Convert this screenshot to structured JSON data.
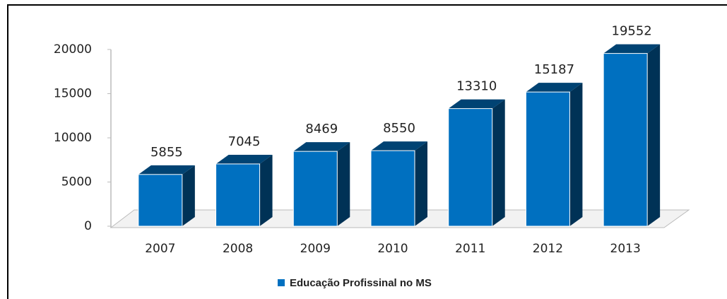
{
  "chart_data": {
    "type": "bar3d",
    "categories": [
      "2007",
      "2008",
      "2009",
      "2010",
      "2011",
      "2012",
      "2013"
    ],
    "series": [
      {
        "name": "Educação Profissinal no MS",
        "color": "#0070c0",
        "values": [
          5855,
          7045,
          8469,
          8550,
          13310,
          15187,
          19552
        ]
      }
    ],
    "ylim": [
      0,
      20000
    ],
    "yticks": [
      0,
      5000,
      10000,
      15000,
      20000
    ],
    "legend": "bottom"
  }
}
